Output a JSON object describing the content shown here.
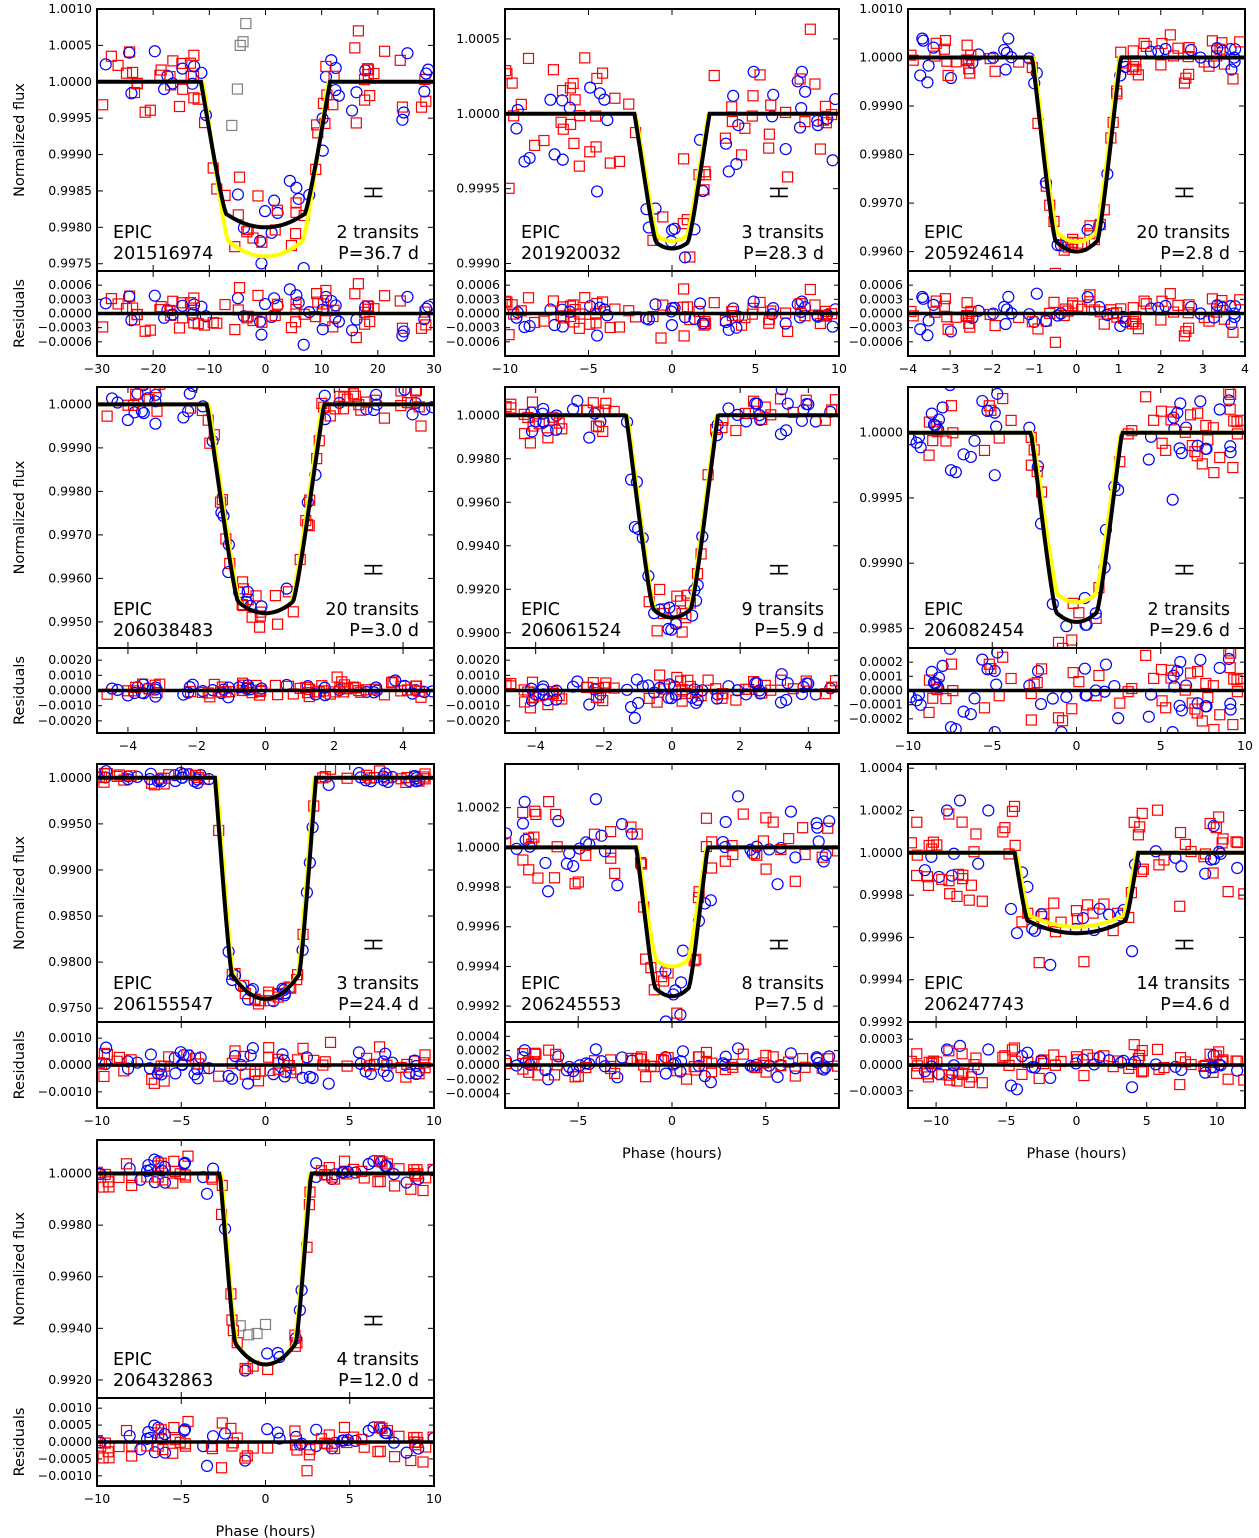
{
  "figure": {
    "ylabel_top": "Normalized flux",
    "ylabel_bottom": "Residuals",
    "xlabel": "Phase (hours)"
  },
  "chart_data": [
    {
      "type": "scatter",
      "target": "EPIC 201516974",
      "epic": "201516974",
      "transits": "2 transits",
      "period": "P=36.7 d",
      "xlim": [
        -30,
        30
      ],
      "xticks": [
        -30,
        -20,
        -10,
        0,
        10,
        20,
        30
      ],
      "ylim": [
        0.9974,
        1.001
      ],
      "yticks": [
        0.9975,
        0.998,
        0.9985,
        0.999,
        0.9995,
        1.0,
        1.0005,
        1.001
      ],
      "ydec": 4,
      "rlim": [
        -0.0009,
        0.0009
      ],
      "rticks": [
        -0.0006,
        -0.0003,
        0.0,
        0.0003,
        0.0006
      ],
      "rdec": 4,
      "depth": 0.002,
      "yellow_depth": 0.0024,
      "t14": 23,
      "ingress": 4.5,
      "scatter": 0.00028,
      "show_xlabel": false,
      "grey_points": [
        [
          -6,
          0.9994
        ],
        [
          -5,
          0.9999
        ],
        [
          -4.5,
          1.0005
        ],
        [
          -4,
          1.00055
        ],
        [
          -3.5,
          1.0008
        ]
      ],
      "xlabel_on": false
    },
    {
      "type": "scatter",
      "target": "EPIC 201920032",
      "epic": "201920032",
      "transits": "3 transits",
      "period": "P=28.3 d",
      "xlim": [
        -10,
        10
      ],
      "xticks": [
        -10,
        -5,
        0,
        5,
        10
      ],
      "ylim": [
        0.99895,
        1.0007
      ],
      "yticks": [
        0.999,
        0.9995,
        1.0,
        1.0005
      ],
      "ydec": 4,
      "rlim": [
        -0.0009,
        0.0009
      ],
      "rticks": [
        -0.0006,
        -0.0003,
        0.0,
        0.0003,
        0.0006
      ],
      "rdec": 4,
      "depth": 0.0009,
      "yellow_depth": 0.00085,
      "t14": 4.5,
      "ingress": 1.3,
      "scatter": 0.00025,
      "grey_points": [],
      "xlabel_on": false
    },
    {
      "type": "scatter",
      "target": "EPIC 205924614",
      "epic": "205924614",
      "transits": "20 transits",
      "period": "P=2.8 d",
      "xlim": [
        -4,
        4
      ],
      "xticks": [
        -4,
        -3,
        -2,
        -1,
        0,
        1,
        2,
        3,
        4
      ],
      "ylim": [
        0.9956,
        1.001
      ],
      "yticks": [
        0.996,
        0.997,
        0.998,
        0.999,
        1.0,
        1.001
      ],
      "ydec": 4,
      "rlim": [
        -0.0009,
        0.0009
      ],
      "rticks": [
        -0.0006,
        -0.0003,
        0.0,
        0.0003,
        0.0006
      ],
      "rdec": 4,
      "depth": 0.004,
      "yellow_depth": 0.0038,
      "t14": 2.1,
      "ingress": 0.55,
      "scatter": 0.0002,
      "grey_points": [],
      "xlabel_on": false
    },
    {
      "type": "scatter",
      "target": "EPIC 206038483",
      "epic": "206038483",
      "transits": "20 transits",
      "period": "P=3.0 d",
      "xlim": [
        -4.9,
        4.9
      ],
      "xticks": [
        -4,
        -2,
        0,
        2,
        4
      ],
      "ylim": [
        0.9944,
        1.0004
      ],
      "yticks": [
        0.995,
        0.996,
        0.997,
        0.998,
        0.999,
        1.0
      ],
      "ydec": 4,
      "rlim": [
        -0.0028,
        0.0028
      ],
      "rticks": [
        -0.002,
        -0.001,
        0.0,
        0.001,
        0.002
      ],
      "rdec": 4,
      "depth": 0.0048,
      "yellow_depth": 0.0048,
      "t14": 3.4,
      "ingress": 0.9,
      "scatter": 0.0003,
      "grey_points": [],
      "xlabel_on": false
    },
    {
      "type": "scatter",
      "target": "EPIC 206061524",
      "epic": "206061524",
      "transits": "9 transits",
      "period": "P=5.9 d",
      "xlim": [
        -4.9,
        4.9
      ],
      "xticks": [
        -4,
        -2,
        0,
        2,
        4
      ],
      "ylim": [
        0.9893,
        1.0013
      ],
      "yticks": [
        0.99,
        0.992,
        0.994,
        0.996,
        0.998,
        1.0
      ],
      "ydec": 4,
      "rlim": [
        -0.0028,
        0.0028
      ],
      "rticks": [
        -0.002,
        -0.001,
        0.0,
        0.001,
        0.002
      ],
      "rdec": 4,
      "depth": 0.0093,
      "yellow_depth": 0.0093,
      "t14": 2.7,
      "ingress": 0.8,
      "scatter": 0.0005,
      "grey_points": [],
      "xlabel_on": false
    },
    {
      "type": "scatter",
      "target": "EPIC 206082454",
      "epic": "206082454",
      "transits": "2 transits",
      "period": "P=29.6 d",
      "xlim": [
        -10,
        10
      ],
      "xticks": [
        -10,
        -5,
        0,
        5,
        10
      ],
      "ylim": [
        0.99835,
        1.00035
      ],
      "yticks": [
        0.9985,
        0.999,
        0.9995,
        1.0
      ],
      "ydec": 4,
      "rlim": [
        -0.0003,
        0.0003
      ],
      "rticks": [
        -0.0002,
        -0.0001,
        0.0,
        0.0001,
        0.0002
      ],
      "rdec": 4,
      "depth": 0.00145,
      "yellow_depth": 0.0013,
      "t14": 5.4,
      "ingress": 1.5,
      "scatter": 0.00018,
      "grey_points": [],
      "xlabel_on": false
    },
    {
      "type": "scatter",
      "target": "EPIC 206155547",
      "epic": "206155547",
      "transits": "3 transits",
      "period": "P=24.4 d",
      "xlim": [
        -10,
        10
      ],
      "xticks": [
        -10,
        -5,
        0,
        5,
        10
      ],
      "ylim": [
        0.9735,
        1.0015
      ],
      "yticks": [
        0.975,
        0.98,
        0.985,
        0.99,
        0.995,
        1.0
      ],
      "ydec": 4,
      "rlim": [
        -0.0016,
        0.0016
      ],
      "rticks": [
        -0.001,
        0.0,
        0.001
      ],
      "rdec": 4,
      "depth": 0.024,
      "yellow_depth": 0.024,
      "t14": 6.0,
      "ingress": 1.0,
      "scatter": 0.0004,
      "grey_points": [],
      "xlabel_on": false
    },
    {
      "type": "scatter",
      "target": "EPIC 206245553",
      "epic": "206245553",
      "transits": "8 transits",
      "period": "P=7.5 d",
      "xlim": [
        -8.9,
        8.9
      ],
      "xticks": [
        -5,
        0,
        5
      ],
      "ylim": [
        0.99912,
        1.00042
      ],
      "yticks": [
        0.9992,
        0.9994,
        0.9996,
        0.9998,
        1.0,
        1.0002
      ],
      "ydec": 4,
      "rlim": [
        -0.0006,
        0.0006
      ],
      "rticks": [
        -0.0004,
        -0.0002,
        0.0,
        0.0002,
        0.0004
      ],
      "rdec": 4,
      "depth": 0.00075,
      "yellow_depth": 0.0006,
      "t14": 3.8,
      "ingress": 1.0,
      "scatter": 0.00012,
      "grey_points": [],
      "xlabel_on": true
    },
    {
      "type": "scatter",
      "target": "EPIC 206247743",
      "epic": "206247743",
      "transits": "14 transits",
      "period": "P=4.6 d",
      "xlim": [
        -12,
        12
      ],
      "xticks": [
        -10,
        -5,
        0,
        5,
        10
      ],
      "ylim": [
        0.9992,
        1.00042
      ],
      "yticks": [
        0.9992,
        0.9994,
        0.9996,
        0.9998,
        1.0,
        1.0002,
        1.0004
      ],
      "ydec": 4,
      "rlim": [
        -0.0005,
        0.0005
      ],
      "rticks": [
        -0.0003,
        0.0,
        0.0003
      ],
      "rdec": 4,
      "depth": 0.00038,
      "yellow_depth": 0.00035,
      "t14": 8.8,
      "ingress": 0.9,
      "scatter": 0.00012,
      "grey_points": [],
      "xlabel_on": true
    },
    {
      "type": "scatter",
      "target": "EPIC 206432863",
      "epic": "206432863",
      "transits": "4 transits",
      "period": "P=12.0 d",
      "xlim": [
        -10,
        10
      ],
      "xticks": [
        -10,
        -5,
        0,
        5,
        10
      ],
      "ylim": [
        0.9913,
        1.0013
      ],
      "yticks": [
        0.992,
        0.994,
        0.996,
        0.998,
        1.0
      ],
      "ydec": 4,
      "rlim": [
        -0.0013,
        0.0013
      ],
      "rticks": [
        -0.001,
        -0.0005,
        0.0,
        0.0005,
        0.001
      ],
      "rdec": 4,
      "depth": 0.0074,
      "yellow_depth": 0.0074,
      "t14": 5.4,
      "ingress": 0.9,
      "scatter": 0.0003,
      "grey_points": [
        [
          -1.5,
          0.9941
        ],
        [
          -1,
          0.99375
        ],
        [
          -0.5,
          0.9938
        ],
        [
          0,
          0.99415
        ]
      ],
      "xlabel_on": true
    }
  ],
  "colors": {
    "model": "#000000",
    "model_alt": "#ffff00",
    "series_a": "#0000ff",
    "series_b": "#ff0000",
    "excluded": "#808080"
  }
}
